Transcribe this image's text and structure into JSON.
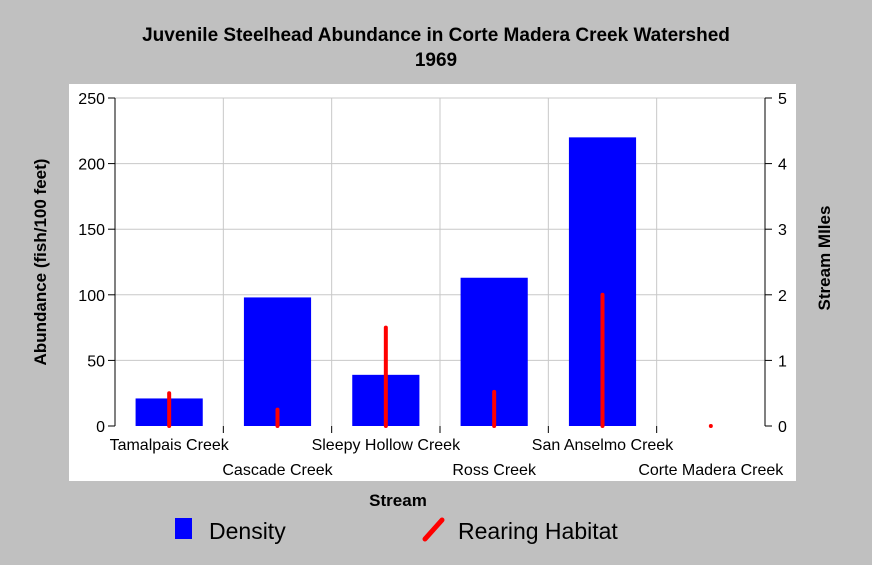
{
  "chart_data": {
    "type": "bar",
    "title": "Juvenile Steelhead Abundance in Corte Madera Creek Watershed",
    "subtitle": "1969",
    "xlabel": "Stream",
    "ylabel": "Abundance (fish/100 feet)",
    "y2label": "Stream MIles",
    "ylim": [
      0,
      250
    ],
    "y2lim": [
      0,
      5
    ],
    "yticks": [
      0,
      50,
      100,
      150,
      200,
      250
    ],
    "y2ticks": [
      0,
      1,
      2,
      3,
      4,
      5
    ],
    "grid": true,
    "legend_position": "bottom",
    "categories": [
      "Tamalpais Creek",
      "Cascade Creek",
      "Sleepy Hollow Creek",
      "Ross Creek",
      "San Anselmo Creek",
      "Corte Madera Creek"
    ],
    "series": [
      {
        "name": "Density",
        "type": "bar",
        "axis": "left",
        "color": "#0000ff",
        "values": [
          21,
          98,
          39,
          113,
          220,
          null
        ]
      },
      {
        "name": "Rearing Habitat",
        "type": "stick",
        "axis": "right",
        "color": "#ff0000",
        "values": [
          0.5,
          0.25,
          1.5,
          0.52,
          2.0,
          0.0
        ]
      }
    ]
  }
}
